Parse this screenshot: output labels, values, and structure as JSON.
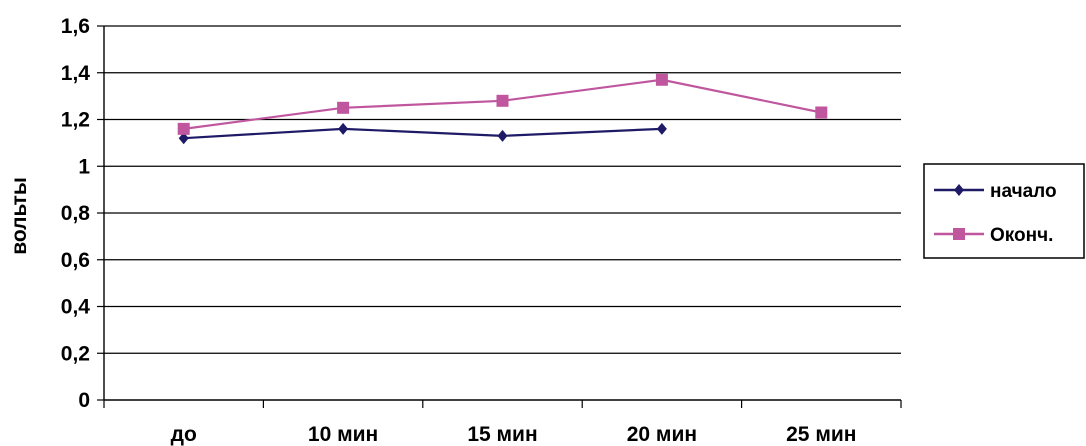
{
  "chart_data": {
    "type": "line",
    "categories": [
      "до",
      "10 мин",
      "15 мин",
      "20 мин",
      "25 мин"
    ],
    "series": [
      {
        "name": "начало",
        "values": [
          1.12,
          1.16,
          1.13,
          1.16,
          null
        ],
        "color": "#1f1a66",
        "marker": "diamond"
      },
      {
        "name": "Оконч.",
        "values": [
          1.16,
          1.25,
          1.28,
          1.37,
          1.23
        ],
        "color": "#c0569e",
        "marker": "square"
      }
    ],
    "ylabel": "вольты",
    "xlabel": "",
    "title": "",
    "ylim": [
      0,
      1.6
    ],
    "yticks": [
      0,
      0.2,
      0.4,
      0.6,
      0.8,
      1,
      1.2,
      1.4,
      1.6
    ],
    "ytick_labels": [
      "0",
      "0,2",
      "0,4",
      "0,6",
      "0,8",
      "1",
      "1,2",
      "1,4",
      "1,6"
    ],
    "grid": "horizontal",
    "legend_position": "right"
  }
}
